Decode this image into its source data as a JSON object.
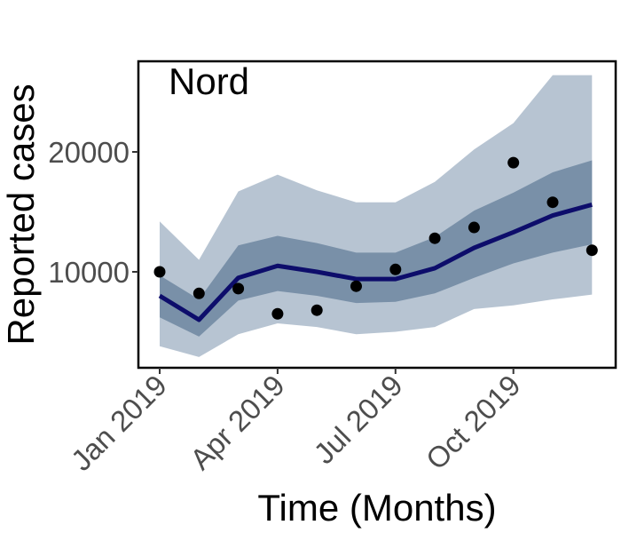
{
  "chart_data": {
    "type": "line",
    "title": "",
    "panel_label": "Nord",
    "xlabel": "Time (Months)",
    "ylabel": "Reported cases",
    "x_tick_labels": [
      "Jan 2019",
      "Apr 2019",
      "Jul 2019",
      "Oct 2019"
    ],
    "y_tick_labels": [
      "10000",
      "20000"
    ],
    "x": [
      "2019-01",
      "2019-02",
      "2019-03",
      "2019-04",
      "2019-05",
      "2019-06",
      "2019-07",
      "2019-08",
      "2019-09",
      "2019-10",
      "2019-11",
      "2019-12"
    ],
    "ylim": [
      2000,
      27000
    ],
    "grid": false,
    "series": [
      {
        "kind": "line",
        "color": "#0d0d6b",
        "values": [
          8000,
          6000,
          9500,
          10500,
          10000,
          9400,
          9400,
          10300,
          12000,
          13300,
          14700,
          15600
        ]
      },
      {
        "kind": "points",
        "color": "#000000",
        "values": [
          10000,
          8200,
          8600,
          6500,
          6800,
          8800,
          10200,
          12800,
          13700,
          19100,
          15800,
          11800
        ]
      },
      {
        "kind": "band",
        "color": "#b7c4d2",
        "lower": [
          3800,
          2900,
          4800,
          5700,
          5400,
          4800,
          5000,
          5400,
          6900,
          7200,
          7700,
          8100
        ],
        "upper": [
          14200,
          11000,
          16700,
          18100,
          16800,
          15800,
          15800,
          17500,
          20200,
          22400,
          26400,
          26400
        ]
      },
      {
        "kind": "band",
        "color": "#7990a8",
        "lower": [
          6200,
          4600,
          7600,
          8400,
          8000,
          7400,
          7500,
          8200,
          9500,
          10700,
          11600,
          12300
        ],
        "upper": [
          9700,
          7700,
          12200,
          13000,
          12400,
          11600,
          11600,
          12900,
          15100,
          16600,
          18300,
          19300
        ]
      }
    ]
  }
}
